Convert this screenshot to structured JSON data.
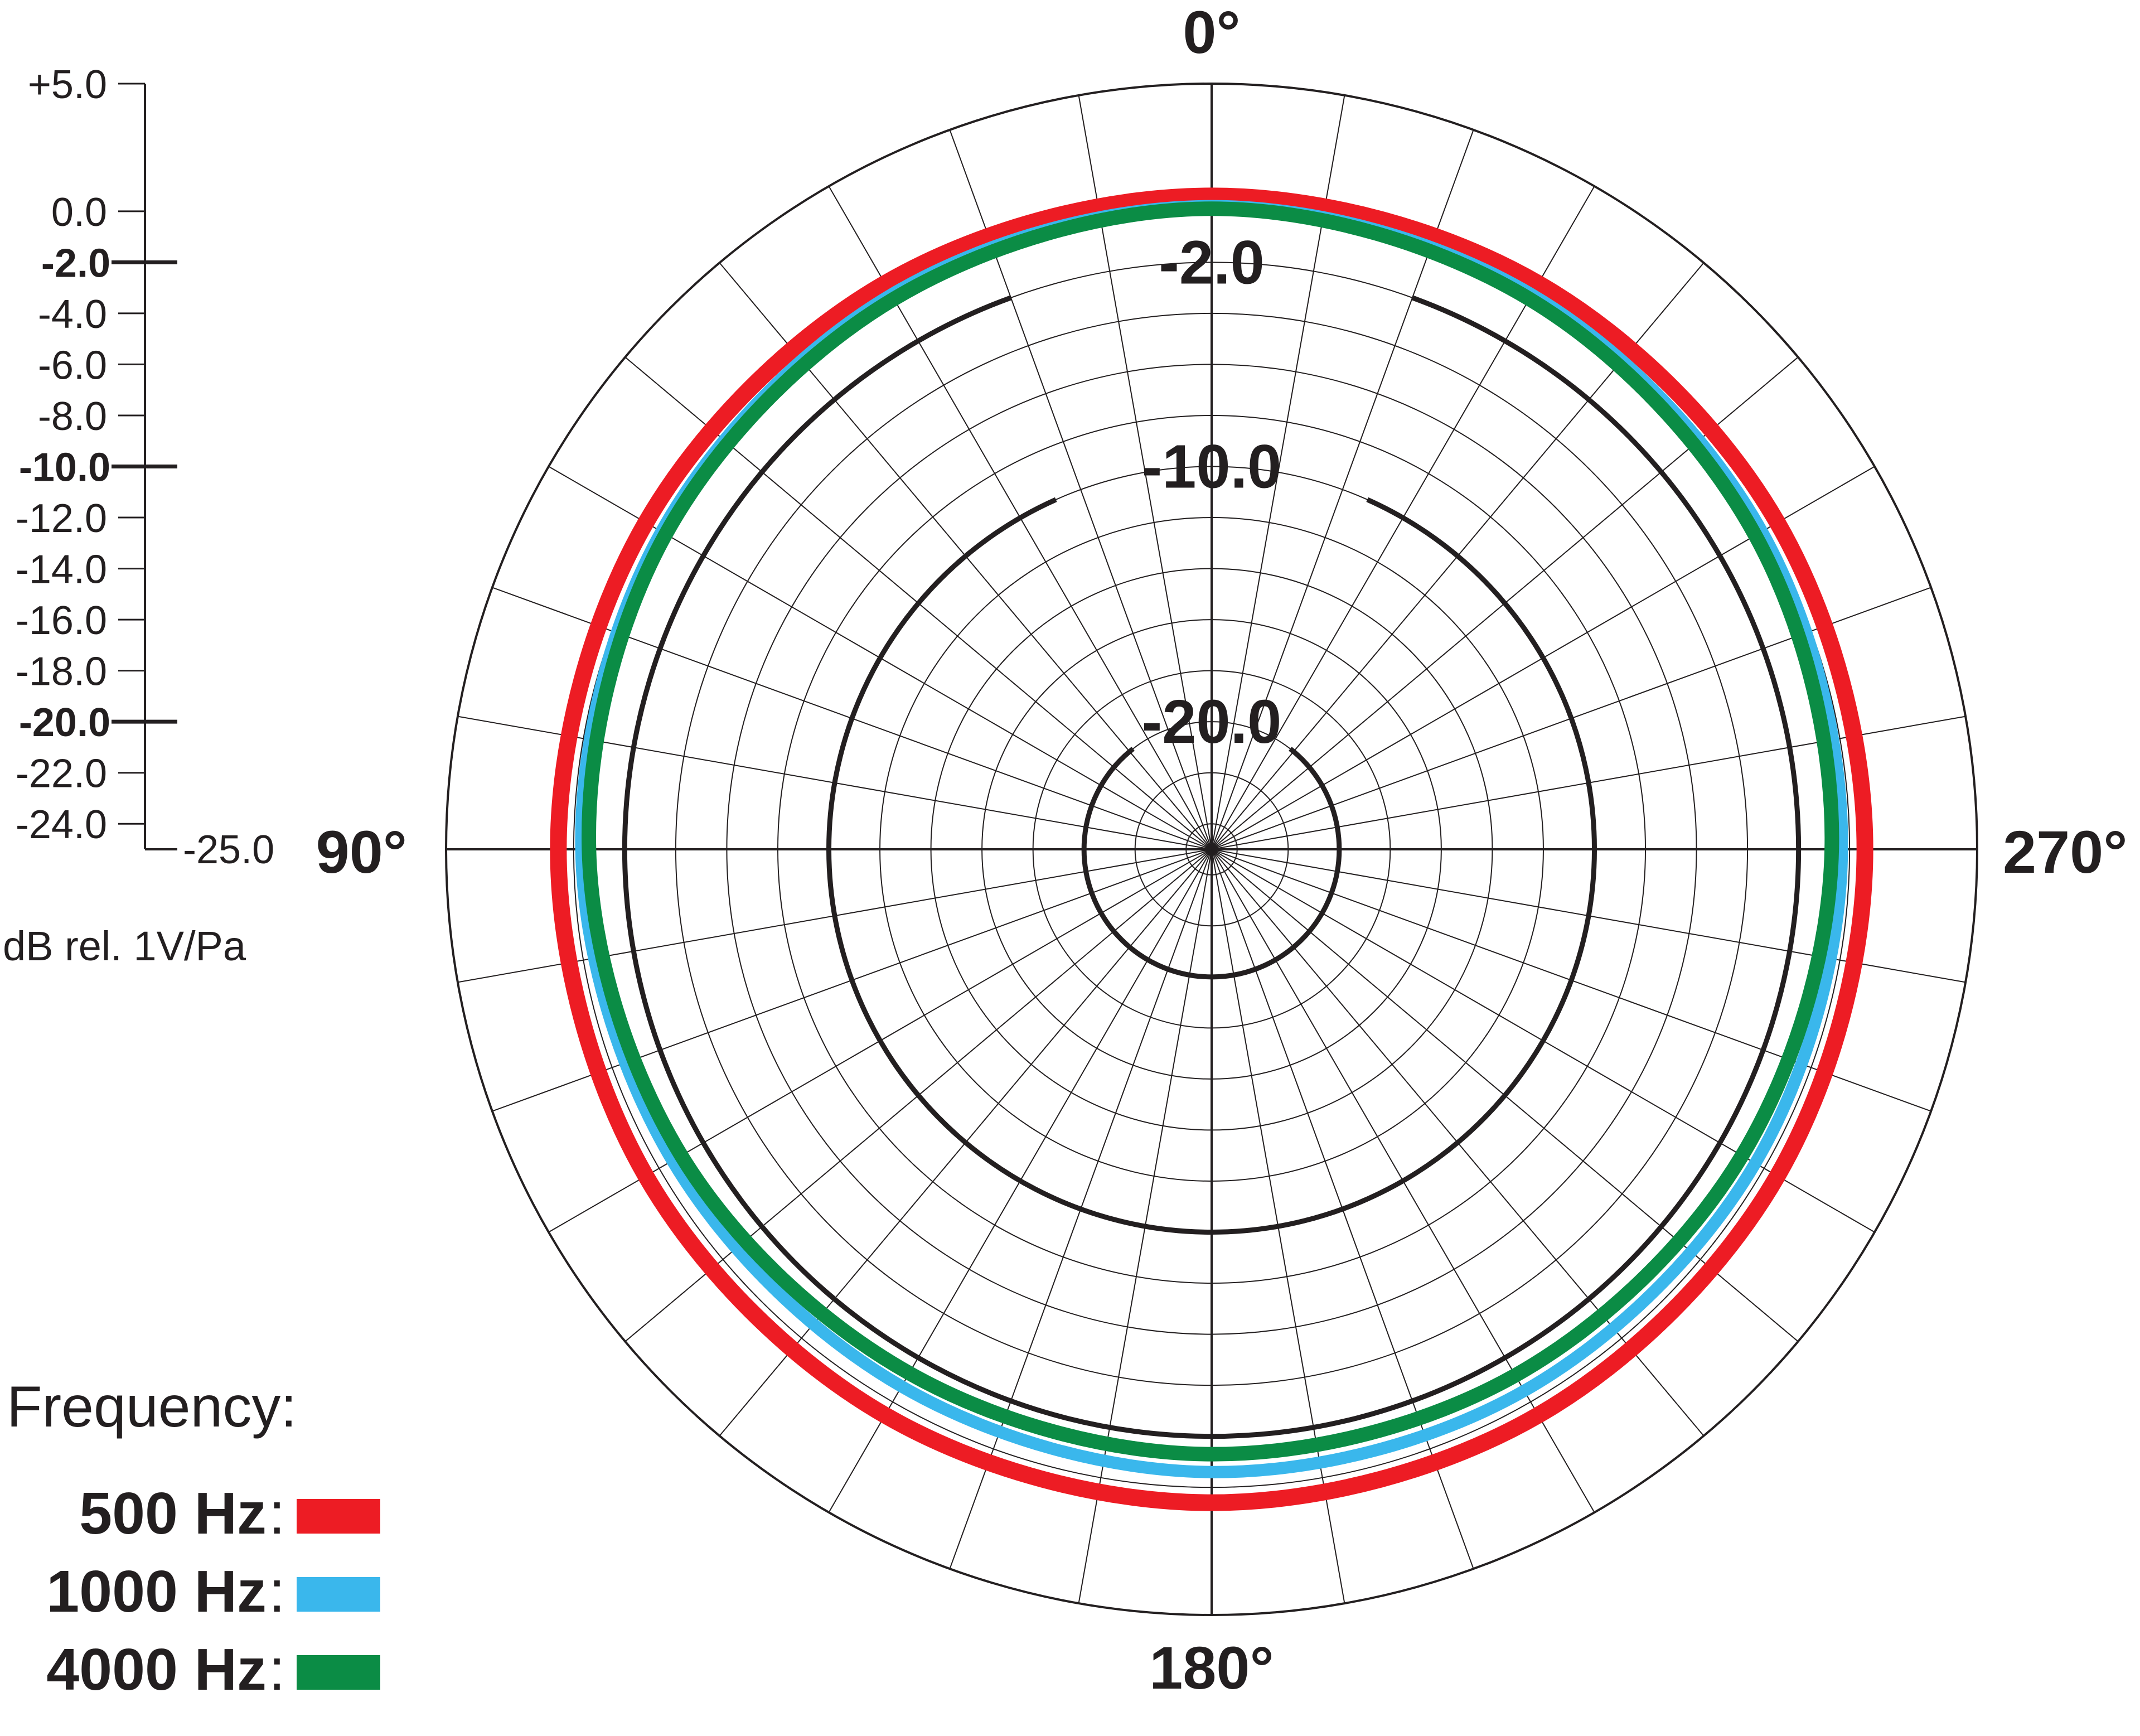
{
  "chart_data": {
    "type": "polar",
    "title": "",
    "angle_labels": [
      "0°",
      "90°",
      "180°",
      "270°"
    ],
    "angle_direction": "counterclockwise, 0° at top",
    "spoke_step_deg": 10,
    "radial_axis": {
      "min": -25.0,
      "max": 5.0,
      "unit_label": "dB rel. 1V/Pa",
      "ticks": [
        {
          "value": 5.0,
          "label": "+5.0",
          "bold": false
        },
        {
          "value": 0.0,
          "label": "0.0",
          "bold": false
        },
        {
          "value": -2.0,
          "label": "-2.0",
          "bold": true
        },
        {
          "value": -4.0,
          "label": "-4.0",
          "bold": false
        },
        {
          "value": -6.0,
          "label": "-6.0",
          "bold": false
        },
        {
          "value": -8.0,
          "label": "-8.0",
          "bold": false
        },
        {
          "value": -10.0,
          "label": "-10.0",
          "bold": true
        },
        {
          "value": -12.0,
          "label": "-12.0",
          "bold": false
        },
        {
          "value": -14.0,
          "label": "-14.0",
          "bold": false
        },
        {
          "value": -16.0,
          "label": "-16.0",
          "bold": false
        },
        {
          "value": -18.0,
          "label": "-18.0",
          "bold": false
        },
        {
          "value": -20.0,
          "label": "-20.0",
          "bold": true
        },
        {
          "value": -22.0,
          "label": "-22.0",
          "bold": false
        },
        {
          "value": -24.0,
          "label": "-24.0",
          "bold": false
        }
      ],
      "min_label": "-25.0",
      "reference_rings": [
        {
          "value": -2.0,
          "label": "-2.0"
        },
        {
          "value": -10.0,
          "label": "-10.0"
        },
        {
          "value": -20.0,
          "label": "-20.0"
        }
      ]
    },
    "legend": {
      "title": "Frequency:",
      "placement": "bottom-left"
    },
    "series": [
      {
        "name": "500 Hz",
        "color": "#ed1c24",
        "angles_deg": [
          0,
          30,
          60,
          90,
          120,
          150,
          180,
          210,
          240,
          270,
          300,
          330
        ],
        "values_db": [
          0.6,
          0.6,
          0.6,
          0.6,
          0.6,
          0.6,
          0.6,
          0.6,
          0.6,
          0.6,
          0.6,
          0.6
        ]
      },
      {
        "name": "1000 Hz",
        "color": "#3ab7ec",
        "angles_deg": [
          0,
          30,
          60,
          90,
          120,
          150,
          180,
          210,
          240,
          270,
          300,
          330
        ],
        "values_db": [
          0.2,
          0.1,
          -0.1,
          -0.3,
          -0.6,
          -0.7,
          -0.6,
          -0.5,
          -0.4,
          -0.3,
          -0.1,
          0.1
        ]
      },
      {
        "name": "4000 Hz",
        "color": "#0b8c45",
        "angles_deg": [
          0,
          30,
          60,
          90,
          120,
          150,
          180,
          210,
          240,
          270,
          300,
          330
        ],
        "values_db": [
          0.1,
          -0.1,
          -0.3,
          -0.6,
          -1.0,
          -1.3,
          -1.3,
          -1.2,
          -1.0,
          -0.7,
          -0.4,
          -0.1
        ]
      }
    ]
  }
}
